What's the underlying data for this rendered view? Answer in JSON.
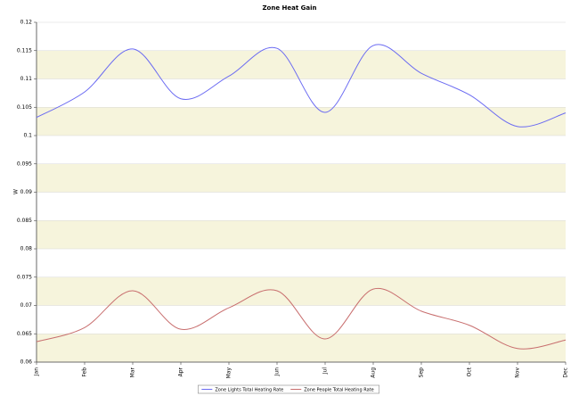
{
  "chart_data": {
    "type": "line",
    "title": "Zone Heat Gain",
    "y_label": "W",
    "categories": [
      "Jan",
      "Feb",
      "Mar",
      "Apr",
      "May",
      "Jun",
      "Jul",
      "Aug",
      "Sep",
      "Oct",
      "Nov",
      "Dec"
    ],
    "series": [
      {
        "name": "Zone Lights Total Heating Rate",
        "color": "#6b6bf2",
        "values": [
          0.1032,
          0.1077,
          0.1153,
          0.1065,
          0.1105,
          0.1154,
          0.1041,
          0.1159,
          0.111,
          0.1072,
          0.1016,
          0.104
        ]
      },
      {
        "name": "Zone People Total Heating Rate",
        "color": "#c86e6e",
        "values": [
          0.0636,
          0.0661,
          0.0726,
          0.0658,
          0.0696,
          0.0726,
          0.0641,
          0.0729,
          0.069,
          0.0665,
          0.0624,
          0.0639
        ]
      }
    ],
    "ylim": [
      0.06,
      0.12
    ],
    "yticks": [
      0.06,
      0.065,
      0.07,
      0.075,
      0.08,
      0.085,
      0.09,
      0.095,
      0.1,
      0.105,
      0.11,
      0.115,
      0.12
    ],
    "grid": true,
    "band_color": "#f6f4dc",
    "legend": "bottom"
  }
}
